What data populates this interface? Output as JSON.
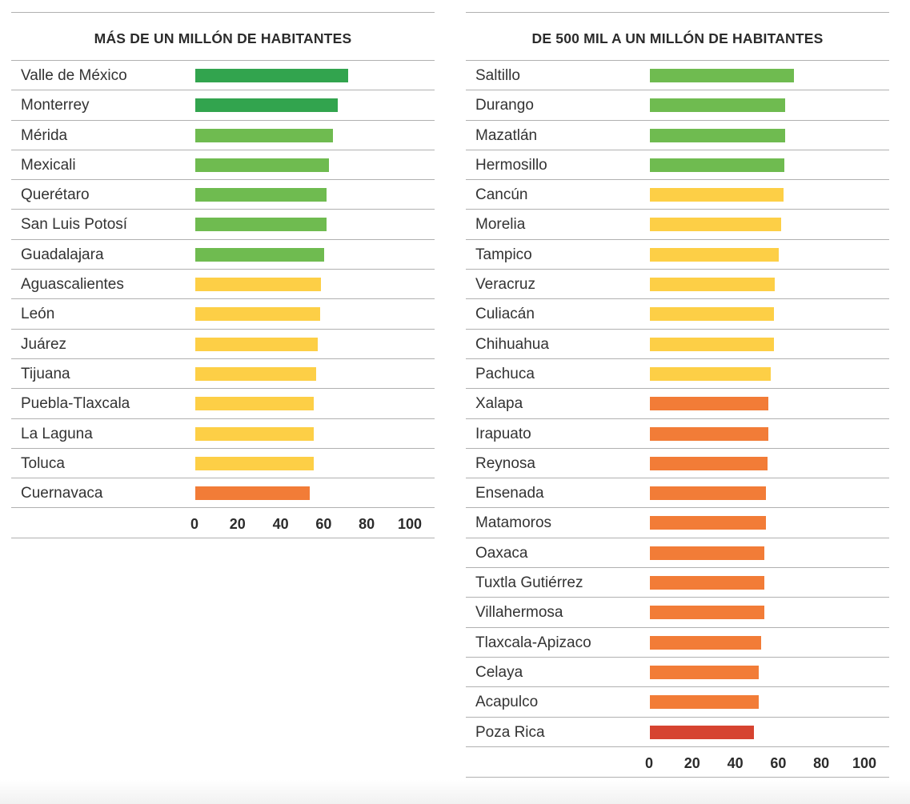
{
  "colors": {
    "dark_green": "#32a44e",
    "green": "#6fbb50",
    "yellow": "#fdcf46",
    "orange": "#f27c37",
    "red": "#d64330"
  },
  "chart_data": [
    {
      "type": "bar",
      "orientation": "horizontal",
      "title": "MÁS DE UN MILLÓN DE HABITANTES",
      "xlim": [
        0,
        100
      ],
      "xticks": [
        "0",
        "20",
        "40",
        "60",
        "80",
        "100"
      ],
      "categories": [
        "Valle de México",
        "Monterrey",
        "Mérida",
        "Mexicali",
        "Querétaro",
        "San Luis Potosí",
        "Guadalajara",
        "Aguascalientes",
        "León",
        "Juárez",
        "Tijuana",
        "Puebla-Tlaxcala",
        "La Laguna",
        "Toluca",
        "Cuernavaca"
      ],
      "values": [
        71,
        66,
        64,
        62,
        61,
        61,
        60,
        58.5,
        58,
        57,
        56,
        55,
        55,
        55,
        53
      ],
      "bar_colors": [
        "dark_green",
        "dark_green",
        "green",
        "green",
        "green",
        "green",
        "green",
        "yellow",
        "yellow",
        "yellow",
        "yellow",
        "yellow",
        "yellow",
        "yellow",
        "orange"
      ]
    },
    {
      "type": "bar",
      "orientation": "horizontal",
      "title": "DE 500 MIL A UN MILLÓN DE HABITANTES",
      "xlim": [
        0,
        100
      ],
      "xticks": [
        "0",
        "20",
        "40",
        "60",
        "80",
        "100"
      ],
      "categories": [
        "Saltillo",
        "Durango",
        "Mazatlán",
        "Hermosillo",
        "Cancún",
        "Morelia",
        "Tampico",
        "Veracruz",
        "Culiacán",
        "Chihuahua",
        "Pachuca",
        "Xalapa",
        "Irapuato",
        "Reynosa",
        "Ensenada",
        "Matamoros",
        "Oaxaca",
        "Tuxtla Gutiérrez",
        "Villahermosa",
        "Tlaxcala-Apizaco",
        "Celaya",
        "Acapulco",
        "Poza Rica"
      ],
      "values": [
        67,
        63,
        63,
        62.5,
        62,
        61,
        60,
        58,
        57.5,
        57.5,
        56,
        55,
        55,
        54.5,
        54,
        54,
        53,
        53,
        53,
        51.5,
        50.5,
        50.5,
        48.5
      ],
      "bar_colors": [
        "green",
        "green",
        "green",
        "green",
        "yellow",
        "yellow",
        "yellow",
        "yellow",
        "yellow",
        "yellow",
        "yellow",
        "orange",
        "orange",
        "orange",
        "orange",
        "orange",
        "orange",
        "orange",
        "orange",
        "orange",
        "orange",
        "orange",
        "red"
      ]
    }
  ]
}
